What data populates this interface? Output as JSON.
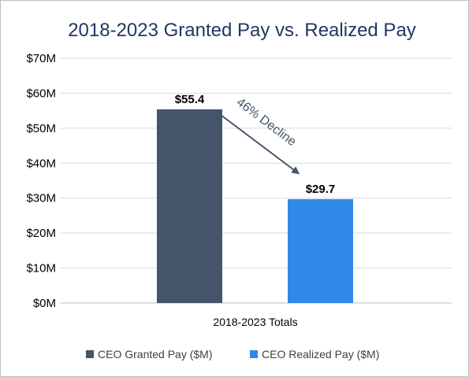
{
  "chart_data": {
    "type": "bar",
    "title": "2018-2023 Granted Pay vs. Realized Pay",
    "categories": [
      "2018-2023 Totals"
    ],
    "series": [
      {
        "name": "CEO Granted Pay ($M)",
        "values": [
          55.4
        ],
        "label": "$55.4",
        "color": "#44546a"
      },
      {
        "name": "CEO Realized Pay ($M)",
        "values": [
          29.7
        ],
        "label": "$29.7",
        "color": "#2e8ae6"
      }
    ],
    "ylim": [
      0,
      70
    ],
    "yticks": [
      {
        "value": 0,
        "label": "$0M"
      },
      {
        "value": 10,
        "label": "$10M"
      },
      {
        "value": 20,
        "label": "$20M"
      },
      {
        "value": 30,
        "label": "$30M"
      },
      {
        "value": 40,
        "label": "$40M"
      },
      {
        "value": 50,
        "label": "$50M"
      },
      {
        "value": 60,
        "label": "$60M"
      },
      {
        "value": 70,
        "label": "$70M"
      }
    ],
    "grid": true,
    "legend": "bottom",
    "annotation": {
      "text": "46% Decline"
    }
  }
}
